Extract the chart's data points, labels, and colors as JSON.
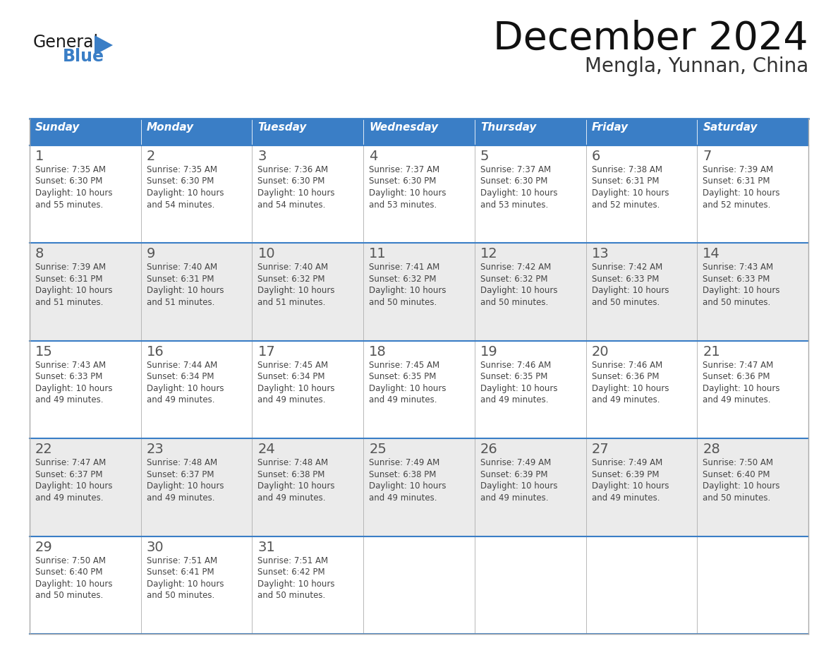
{
  "title": "December 2024",
  "subtitle": "Mengla, Yunnan, China",
  "header_bg_color": "#3A7EC6",
  "header_text_color": "#FFFFFF",
  "day_names": [
    "Sunday",
    "Monday",
    "Tuesday",
    "Wednesday",
    "Thursday",
    "Friday",
    "Saturday"
  ],
  "weeks": [
    [
      {
        "day": 1,
        "sunrise": "7:35 AM",
        "sunset": "6:30 PM",
        "daylight_hours": 10,
        "daylight_minutes": 55
      },
      {
        "day": 2,
        "sunrise": "7:35 AM",
        "sunset": "6:30 PM",
        "daylight_hours": 10,
        "daylight_minutes": 54
      },
      {
        "day": 3,
        "sunrise": "7:36 AM",
        "sunset": "6:30 PM",
        "daylight_hours": 10,
        "daylight_minutes": 54
      },
      {
        "day": 4,
        "sunrise": "7:37 AM",
        "sunset": "6:30 PM",
        "daylight_hours": 10,
        "daylight_minutes": 53
      },
      {
        "day": 5,
        "sunrise": "7:37 AM",
        "sunset": "6:30 PM",
        "daylight_hours": 10,
        "daylight_minutes": 53
      },
      {
        "day": 6,
        "sunrise": "7:38 AM",
        "sunset": "6:31 PM",
        "daylight_hours": 10,
        "daylight_minutes": 52
      },
      {
        "day": 7,
        "sunrise": "7:39 AM",
        "sunset": "6:31 PM",
        "daylight_hours": 10,
        "daylight_minutes": 52
      }
    ],
    [
      {
        "day": 8,
        "sunrise": "7:39 AM",
        "sunset": "6:31 PM",
        "daylight_hours": 10,
        "daylight_minutes": 51
      },
      {
        "day": 9,
        "sunrise": "7:40 AM",
        "sunset": "6:31 PM",
        "daylight_hours": 10,
        "daylight_minutes": 51
      },
      {
        "day": 10,
        "sunrise": "7:40 AM",
        "sunset": "6:32 PM",
        "daylight_hours": 10,
        "daylight_minutes": 51
      },
      {
        "day": 11,
        "sunrise": "7:41 AM",
        "sunset": "6:32 PM",
        "daylight_hours": 10,
        "daylight_minutes": 50
      },
      {
        "day": 12,
        "sunrise": "7:42 AM",
        "sunset": "6:32 PM",
        "daylight_hours": 10,
        "daylight_minutes": 50
      },
      {
        "day": 13,
        "sunrise": "7:42 AM",
        "sunset": "6:33 PM",
        "daylight_hours": 10,
        "daylight_minutes": 50
      },
      {
        "day": 14,
        "sunrise": "7:43 AM",
        "sunset": "6:33 PM",
        "daylight_hours": 10,
        "daylight_minutes": 50
      }
    ],
    [
      {
        "day": 15,
        "sunrise": "7:43 AM",
        "sunset": "6:33 PM",
        "daylight_hours": 10,
        "daylight_minutes": 49
      },
      {
        "day": 16,
        "sunrise": "7:44 AM",
        "sunset": "6:34 PM",
        "daylight_hours": 10,
        "daylight_minutes": 49
      },
      {
        "day": 17,
        "sunrise": "7:45 AM",
        "sunset": "6:34 PM",
        "daylight_hours": 10,
        "daylight_minutes": 49
      },
      {
        "day": 18,
        "sunrise": "7:45 AM",
        "sunset": "6:35 PM",
        "daylight_hours": 10,
        "daylight_minutes": 49
      },
      {
        "day": 19,
        "sunrise": "7:46 AM",
        "sunset": "6:35 PM",
        "daylight_hours": 10,
        "daylight_minutes": 49
      },
      {
        "day": 20,
        "sunrise": "7:46 AM",
        "sunset": "6:36 PM",
        "daylight_hours": 10,
        "daylight_minutes": 49
      },
      {
        "day": 21,
        "sunrise": "7:47 AM",
        "sunset": "6:36 PM",
        "daylight_hours": 10,
        "daylight_minutes": 49
      }
    ],
    [
      {
        "day": 22,
        "sunrise": "7:47 AM",
        "sunset": "6:37 PM",
        "daylight_hours": 10,
        "daylight_minutes": 49
      },
      {
        "day": 23,
        "sunrise": "7:48 AM",
        "sunset": "6:37 PM",
        "daylight_hours": 10,
        "daylight_minutes": 49
      },
      {
        "day": 24,
        "sunrise": "7:48 AM",
        "sunset": "6:38 PM",
        "daylight_hours": 10,
        "daylight_minutes": 49
      },
      {
        "day": 25,
        "sunrise": "7:49 AM",
        "sunset": "6:38 PM",
        "daylight_hours": 10,
        "daylight_minutes": 49
      },
      {
        "day": 26,
        "sunrise": "7:49 AM",
        "sunset": "6:39 PM",
        "daylight_hours": 10,
        "daylight_minutes": 49
      },
      {
        "day": 27,
        "sunrise": "7:49 AM",
        "sunset": "6:39 PM",
        "daylight_hours": 10,
        "daylight_minutes": 49
      },
      {
        "day": 28,
        "sunrise": "7:50 AM",
        "sunset": "6:40 PM",
        "daylight_hours": 10,
        "daylight_minutes": 50
      }
    ],
    [
      {
        "day": 29,
        "sunrise": "7:50 AM",
        "sunset": "6:40 PM",
        "daylight_hours": 10,
        "daylight_minutes": 50
      },
      {
        "day": 30,
        "sunrise": "7:51 AM",
        "sunset": "6:41 PM",
        "daylight_hours": 10,
        "daylight_minutes": 50
      },
      {
        "day": 31,
        "sunrise": "7:51 AM",
        "sunset": "6:42 PM",
        "daylight_hours": 10,
        "daylight_minutes": 50
      },
      null,
      null,
      null,
      null
    ]
  ],
  "logo_general_color": "#1a1a1a",
  "logo_blue_color": "#3A7EC6",
  "cell_bg_color": "#FFFFFF",
  "cell_alt_bg_color": "#EBEBEB",
  "border_color": "#AAAAAA",
  "week_divider_color": "#3A7EC6",
  "day_num_color": "#555555",
  "text_color": "#444444",
  "title_color": "#111111",
  "subtitle_color": "#333333"
}
